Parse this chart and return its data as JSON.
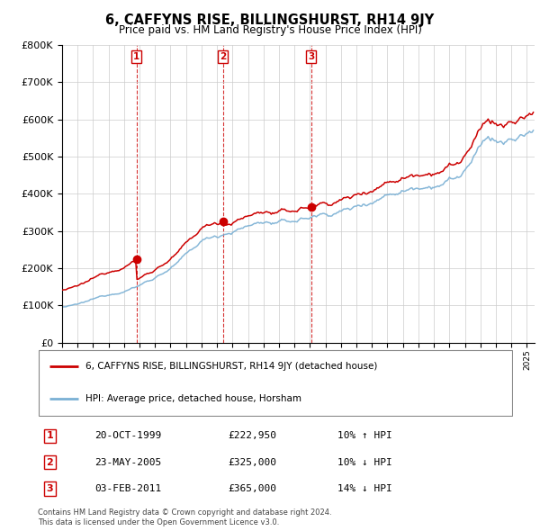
{
  "title": "6, CAFFYNS RISE, BILLINGSHURST, RH14 9JY",
  "subtitle": "Price paid vs. HM Land Registry's House Price Index (HPI)",
  "ylabel_ticks": [
    "£0",
    "£100K",
    "£200K",
    "£300K",
    "£400K",
    "£500K",
    "£600K",
    "£700K",
    "£800K"
  ],
  "ytick_values": [
    0,
    100000,
    200000,
    300000,
    400000,
    500000,
    600000,
    700000,
    800000
  ],
  "ylim": [
    0,
    800000
  ],
  "xlim_start": 1995.0,
  "xlim_end": 2025.5,
  "legend_line1": "6, CAFFYNS RISE, BILLINGSHURST, RH14 9JY (detached house)",
  "legend_line2": "HPI: Average price, detached house, Horsham",
  "sale1_date": "20-OCT-1999",
  "sale1_price": "£222,950",
  "sale1_hpi": "10% ↑ HPI",
  "sale1_year": 1999.8,
  "sale1_value": 222950,
  "sale2_date": "23-MAY-2005",
  "sale2_price": "£325,000",
  "sale2_hpi": "10% ↓ HPI",
  "sale2_year": 2005.38,
  "sale2_value": 325000,
  "sale3_date": "03-FEB-2011",
  "sale3_price": "£365,000",
  "sale3_hpi": "14% ↓ HPI",
  "sale3_year": 2011.08,
  "sale3_value": 365000,
  "copyright_text": "Contains HM Land Registry data © Crown copyright and database right 2024.\nThis data is licensed under the Open Government Licence v3.0.",
  "red_color": "#cc0000",
  "blue_color": "#7ab0d4",
  "grid_color": "#cccccc",
  "bg_color": "#ffffff"
}
